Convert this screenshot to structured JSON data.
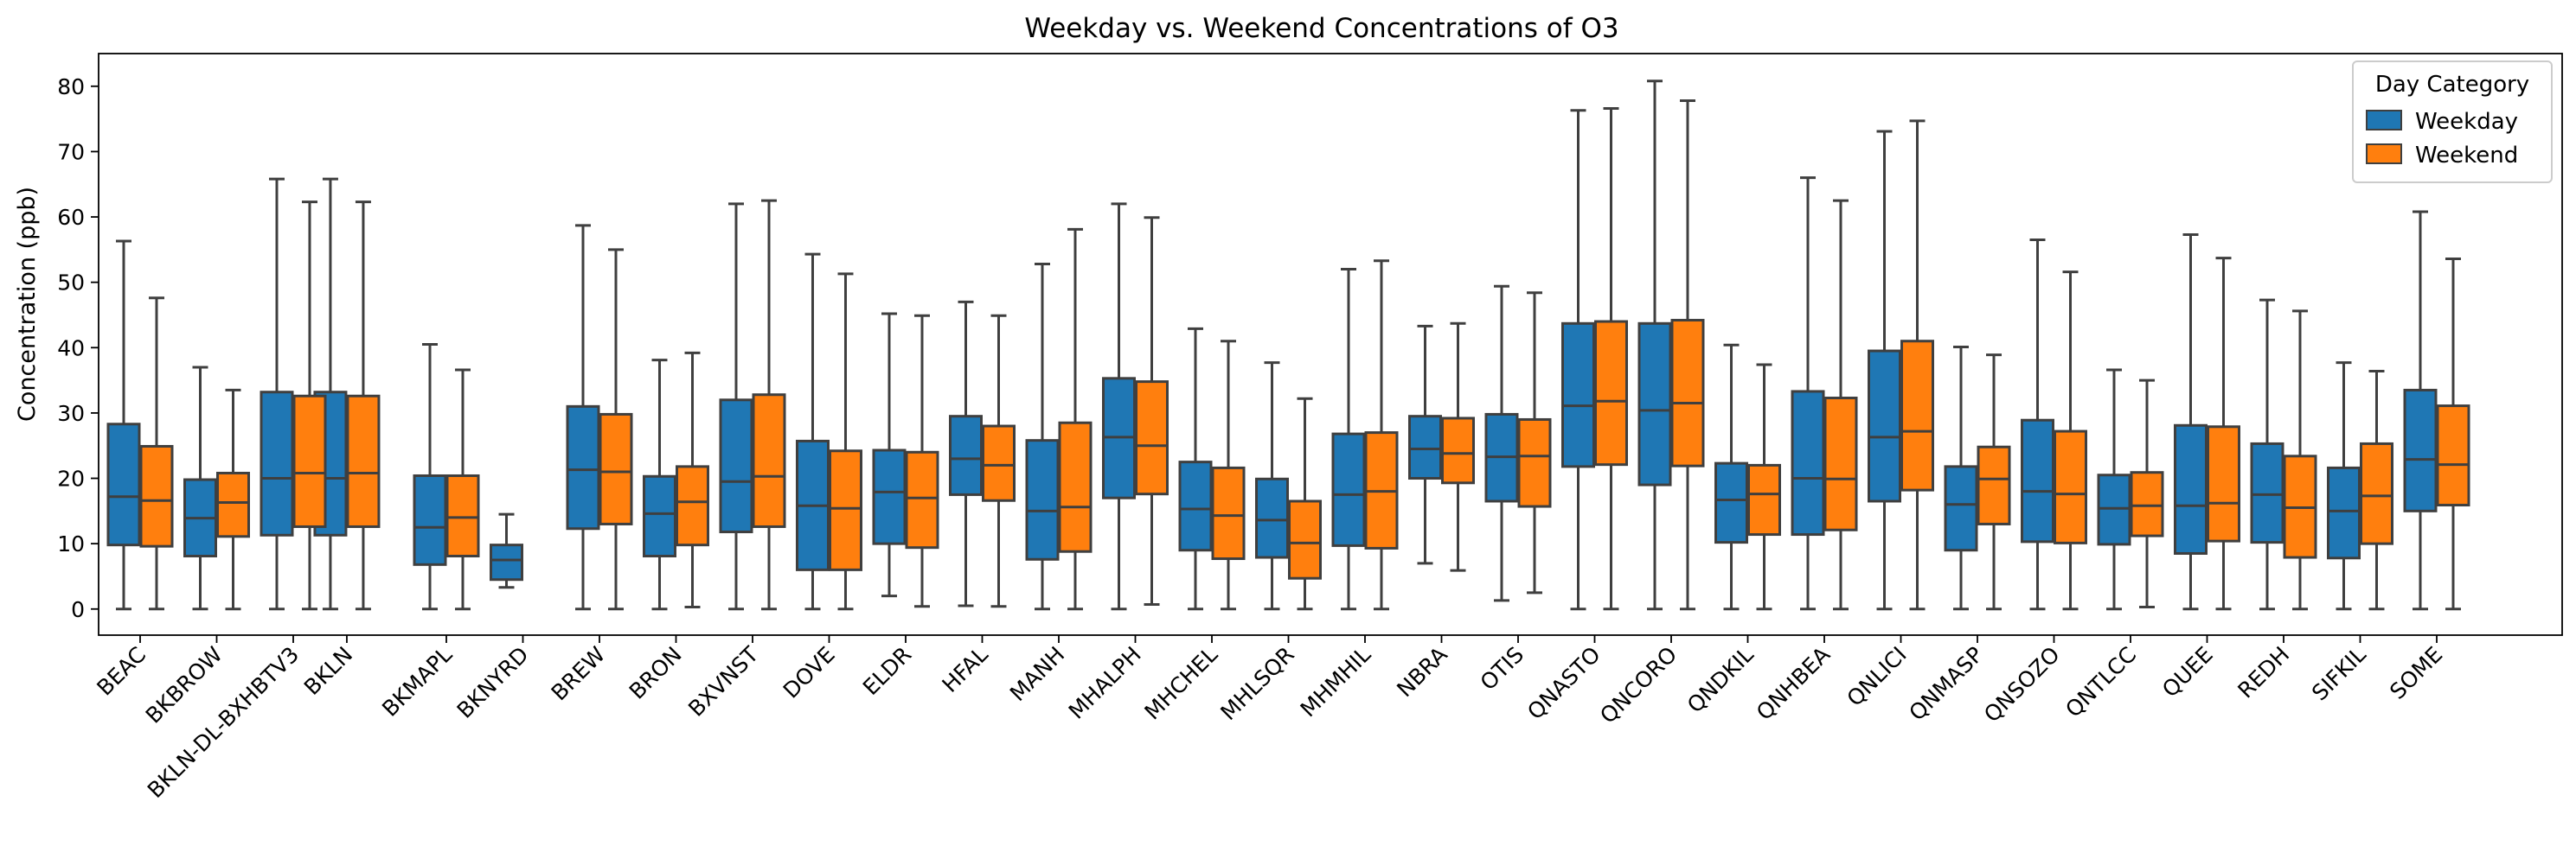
{
  "chart_data": {
    "type": "box",
    "title": "Weekday vs. Weekend Concentrations of O3",
    "xlabel": "",
    "ylabel": "Concentration (ppb)",
    "ylim": [
      -4,
      85
    ],
    "yticks": [
      0,
      10,
      20,
      30,
      40,
      50,
      60,
      70,
      80
    ],
    "grid": false,
    "legend": {
      "title": "Day Category",
      "placement": "top-right",
      "entries": [
        "Weekday",
        "Weekend"
      ]
    },
    "colors": {
      "Weekday": "#1f77b4",
      "Weekend": "#ff7f0e"
    },
    "categories": [
      "BEAC",
      "BKBROW",
      "BKLN-DL-BXHBTV3",
      "BKLN",
      "BKMAPL",
      "BKNYRD",
      "BREW",
      "BRON",
      "BXVNST",
      "DOVE",
      "ELDR",
      "HFAL",
      "MANH",
      "MHALPH",
      "MHCHEL",
      "MHLSQR",
      "MHMHIL",
      "NBRA",
      "OTIS",
      "QNASTO",
      "QNCORO",
      "QNDKIL",
      "QNHBEA",
      "QNLICI",
      "QNMASP",
      "QNSOZO",
      "QNTLCC",
      "QUEE",
      "REDH",
      "SIFKIL",
      "SOME"
    ],
    "category_slots": [
      0,
      1,
      2,
      2.7,
      4,
      5,
      6,
      7,
      8,
      9,
      10,
      11,
      12,
      13,
      14,
      15,
      16,
      17,
      18,
      19,
      20,
      21,
      22,
      23,
      24,
      25,
      26,
      27,
      28,
      29,
      30
    ],
    "series": [
      {
        "name": "Weekday",
        "boxes": [
          [
            0,
            9.8,
            17.2,
            28.3,
            56.3
          ],
          [
            0,
            8.1,
            13.9,
            19.8,
            37.0
          ],
          [
            0,
            11.3,
            20.0,
            33.2,
            65.8
          ],
          [
            0,
            11.3,
            20.0,
            33.2,
            65.8
          ],
          [
            0,
            6.8,
            12.5,
            20.4,
            40.5
          ],
          [
            3.3,
            4.5,
            7.5,
            9.8,
            14.5
          ],
          [
            0,
            12.3,
            21.3,
            31.0,
            58.7
          ],
          [
            0,
            8.1,
            14.6,
            20.3,
            38.1
          ],
          [
            0,
            11.8,
            19.5,
            32.0,
            62.0
          ],
          [
            0,
            6.0,
            15.8,
            25.7,
            54.3
          ],
          [
            2.0,
            10.0,
            17.9,
            24.3,
            45.2
          ],
          [
            0.5,
            17.5,
            23.0,
            29.5,
            47.0
          ],
          [
            0,
            7.6,
            15.0,
            25.8,
            52.8
          ],
          [
            0,
            17.0,
            26.3,
            35.3,
            62.0
          ],
          [
            0,
            9.0,
            15.3,
            22.5,
            42.9
          ],
          [
            0,
            7.9,
            13.6,
            19.9,
            37.7
          ],
          [
            0,
            9.7,
            17.5,
            26.8,
            52.0
          ],
          [
            7.0,
            20.0,
            24.5,
            29.5,
            43.3
          ],
          [
            1.3,
            16.5,
            23.3,
            29.8,
            49.4
          ],
          [
            0,
            21.8,
            31.1,
            43.7,
            76.3
          ],
          [
            0,
            19.0,
            30.4,
            43.7,
            80.8
          ],
          [
            0,
            10.2,
            16.7,
            22.3,
            40.4
          ],
          [
            0,
            11.4,
            20.0,
            33.3,
            66.0
          ],
          [
            0,
            16.5,
            26.3,
            39.5,
            73.1
          ],
          [
            0,
            9.0,
            16.0,
            21.8,
            40.1
          ],
          [
            0,
            10.3,
            18.0,
            28.9,
            56.5
          ],
          [
            0,
            9.9,
            15.4,
            20.5,
            36.6
          ],
          [
            0,
            8.5,
            15.8,
            28.1,
            57.3
          ],
          [
            0,
            10.2,
            17.5,
            25.3,
            47.3
          ],
          [
            0,
            7.8,
            15.0,
            21.6,
            37.7
          ],
          [
            0,
            15.0,
            22.9,
            33.5,
            60.8
          ]
        ]
      },
      {
        "name": "Weekend",
        "boxes": [
          [
            0,
            9.6,
            16.6,
            24.9,
            47.6
          ],
          [
            0,
            11.1,
            16.3,
            20.8,
            33.5
          ],
          [
            0,
            12.6,
            20.8,
            32.6,
            62.3
          ],
          [
            0,
            12.6,
            20.8,
            32.6,
            62.3
          ],
          [
            0,
            8.1,
            14.0,
            20.4,
            36.6
          ],
          null,
          [
            0,
            13.0,
            21.0,
            29.8,
            55.0
          ],
          [
            0.3,
            9.8,
            16.4,
            21.8,
            39.2
          ],
          [
            0,
            12.6,
            20.3,
            32.8,
            62.5
          ],
          [
            0,
            6.0,
            15.4,
            24.2,
            51.3
          ],
          [
            0.4,
            9.4,
            17.0,
            24.0,
            44.9
          ],
          [
            0.4,
            16.6,
            22.0,
            28.0,
            44.9
          ],
          [
            0,
            8.8,
            15.6,
            28.5,
            58.1
          ],
          [
            0.7,
            17.6,
            25.0,
            34.8,
            59.9
          ],
          [
            0,
            7.7,
            14.3,
            21.6,
            41.0
          ],
          [
            0,
            4.7,
            10.1,
            16.5,
            32.2
          ],
          [
            0,
            9.3,
            18.0,
            27.0,
            53.3
          ],
          [
            5.9,
            19.3,
            23.8,
            29.2,
            43.7
          ],
          [
            2.5,
            15.7,
            23.4,
            29.0,
            48.4
          ],
          [
            0,
            22.1,
            31.8,
            44.0,
            76.6
          ],
          [
            0,
            21.9,
            31.5,
            44.2,
            77.8
          ],
          [
            0,
            11.4,
            17.6,
            22.0,
            37.4
          ],
          [
            0,
            12.1,
            19.9,
            32.3,
            62.5
          ],
          [
            0,
            18.2,
            27.2,
            41.0,
            74.7
          ],
          [
            0,
            13.0,
            19.9,
            24.8,
            38.9
          ],
          [
            0,
            10.1,
            17.6,
            27.2,
            51.6
          ],
          [
            0.3,
            11.2,
            15.8,
            20.9,
            35.0
          ],
          [
            0,
            10.4,
            16.2,
            27.9,
            53.7
          ],
          [
            0,
            7.9,
            15.5,
            23.4,
            45.6
          ],
          [
            0,
            10.0,
            17.3,
            25.3,
            36.4
          ],
          [
            0,
            15.9,
            22.1,
            31.1,
            53.6
          ]
        ]
      }
    ]
  }
}
